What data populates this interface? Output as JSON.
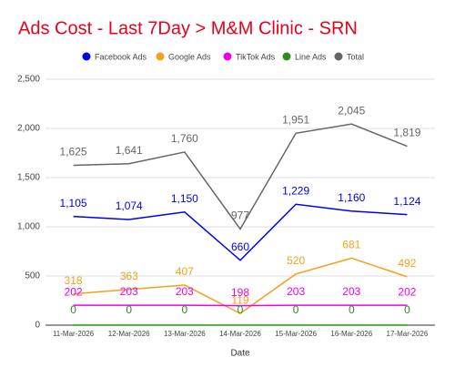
{
  "chart_data": {
    "type": "line",
    "title": "Ads Cost - Last 7Day > M&M Clinic - SRN",
    "x_label": "Date",
    "categories": [
      "11-Mar-2026",
      "12-Mar-2026",
      "13-Mar-2026",
      "14-Mar-2026",
      "15-Mar-2026",
      "16-Mar-2026",
      "17-Mar-2026"
    ],
    "series": [
      {
        "name": "Facebook Ads",
        "color": "#0000ee",
        "values": [
          1105,
          1074,
          1150,
          660,
          1229,
          1160,
          1124
        ],
        "value_labels": [
          "1,105",
          "1,074",
          "1,150",
          "660",
          "1,229",
          "1,160",
          "1,124"
        ]
      },
      {
        "name": "Google Ads",
        "color": "#f4a01c",
        "values": [
          318,
          363,
          407,
          119,
          520,
          681,
          492
        ]
      },
      {
        "name": "TikTok Ads",
        "color": "#ee00ee",
        "values": [
          202,
          203,
          203,
          198,
          203,
          203,
          202
        ]
      },
      {
        "name": "Line Ads",
        "color": "#2e8b1e",
        "values": [
          0,
          0,
          0,
          0,
          0,
          0,
          0
        ]
      },
      {
        "name": "Total",
        "color": "#666666",
        "values": [
          1625,
          1641,
          1760,
          977,
          1951,
          2045,
          1819
        ],
        "value_labels": [
          "1,625",
          "1,641",
          "1,760",
          "977",
          "1,951",
          "2,045",
          "1,819"
        ]
      }
    ],
    "ylim": [
      0,
      2500
    ],
    "yticks": [
      0,
      500,
      {
        "value": 1000,
        "label": "1,000"
      },
      {
        "value": 1500,
        "label": "1,500"
      },
      {
        "value": 2000,
        "label": "2,000"
      },
      {
        "value": 2500,
        "label": "2,500"
      }
    ],
    "grid": true,
    "legend": "top"
  }
}
